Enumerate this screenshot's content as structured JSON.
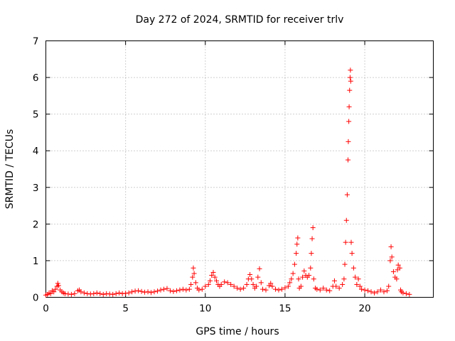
{
  "chart_data": {
    "type": "scatter",
    "title": "Day 272 of 2024, SRMTID for receiver trlv",
    "xlabel": "GPS time / hours",
    "ylabel": "SRMTID / TECUs",
    "xlim": [
      0,
      24.3
    ],
    "ylim": [
      0,
      7
    ],
    "xticks": [
      0,
      5,
      10,
      15,
      20
    ],
    "yticks": [
      0,
      1,
      2,
      3,
      4,
      5,
      6,
      7
    ],
    "grid": true,
    "legend": "none",
    "marker": "+",
    "series": [
      {
        "color": "#ff0000",
        "points": [
          [
            0.0,
            0.06
          ],
          [
            0.1,
            0.08
          ],
          [
            0.2,
            0.12
          ],
          [
            0.3,
            0.1
          ],
          [
            0.4,
            0.18
          ],
          [
            0.5,
            0.15
          ],
          [
            0.6,
            0.22
          ],
          [
            0.7,
            0.3
          ],
          [
            0.75,
            0.38
          ],
          [
            0.8,
            0.32
          ],
          [
            0.9,
            0.2
          ],
          [
            1.0,
            0.15
          ],
          [
            1.1,
            0.12
          ],
          [
            1.2,
            0.1
          ],
          [
            1.4,
            0.09
          ],
          [
            1.6,
            0.08
          ],
          [
            1.8,
            0.1
          ],
          [
            2.0,
            0.18
          ],
          [
            2.1,
            0.2
          ],
          [
            2.2,
            0.15
          ],
          [
            2.4,
            0.12
          ],
          [
            2.6,
            0.1
          ],
          [
            2.8,
            0.09
          ],
          [
            3.0,
            0.1
          ],
          [
            3.2,
            0.12
          ],
          [
            3.4,
            0.1
          ],
          [
            3.6,
            0.08
          ],
          [
            3.8,
            0.1
          ],
          [
            4.0,
            0.09
          ],
          [
            4.2,
            0.08
          ],
          [
            4.4,
            0.1
          ],
          [
            4.6,
            0.12
          ],
          [
            4.8,
            0.1
          ],
          [
            5.0,
            0.11
          ],
          [
            5.2,
            0.12
          ],
          [
            5.4,
            0.15
          ],
          [
            5.6,
            0.17
          ],
          [
            5.8,
            0.18
          ],
          [
            6.0,
            0.16
          ],
          [
            6.2,
            0.14
          ],
          [
            6.4,
            0.15
          ],
          [
            6.6,
            0.13
          ],
          [
            6.8,
            0.15
          ],
          [
            7.0,
            0.17
          ],
          [
            7.2,
            0.2
          ],
          [
            7.4,
            0.22
          ],
          [
            7.6,
            0.24
          ],
          [
            7.8,
            0.18
          ],
          [
            8.0,
            0.16
          ],
          [
            8.2,
            0.18
          ],
          [
            8.4,
            0.2
          ],
          [
            8.6,
            0.22
          ],
          [
            8.8,
            0.2
          ],
          [
            9.0,
            0.22
          ],
          [
            9.1,
            0.35
          ],
          [
            9.2,
            0.55
          ],
          [
            9.25,
            0.8
          ],
          [
            9.3,
            0.65
          ],
          [
            9.4,
            0.4
          ],
          [
            9.5,
            0.25
          ],
          [
            9.6,
            0.2
          ],
          [
            9.8,
            0.22
          ],
          [
            10.0,
            0.3
          ],
          [
            10.2,
            0.35
          ],
          [
            10.3,
            0.45
          ],
          [
            10.4,
            0.6
          ],
          [
            10.5,
            0.68
          ],
          [
            10.6,
            0.55
          ],
          [
            10.7,
            0.45
          ],
          [
            10.8,
            0.35
          ],
          [
            10.9,
            0.3
          ],
          [
            11.0,
            0.35
          ],
          [
            11.2,
            0.42
          ],
          [
            11.4,
            0.4
          ],
          [
            11.6,
            0.35
          ],
          [
            11.8,
            0.3
          ],
          [
            12.0,
            0.25
          ],
          [
            12.2,
            0.22
          ],
          [
            12.4,
            0.25
          ],
          [
            12.6,
            0.35
          ],
          [
            12.7,
            0.5
          ],
          [
            12.8,
            0.62
          ],
          [
            12.9,
            0.5
          ],
          [
            13.0,
            0.35
          ],
          [
            13.1,
            0.25
          ],
          [
            13.2,
            0.3
          ],
          [
            13.3,
            0.55
          ],
          [
            13.4,
            0.78
          ],
          [
            13.5,
            0.4
          ],
          [
            13.6,
            0.22
          ],
          [
            13.8,
            0.2
          ],
          [
            14.0,
            0.32
          ],
          [
            14.1,
            0.38
          ],
          [
            14.2,
            0.3
          ],
          [
            14.4,
            0.22
          ],
          [
            14.6,
            0.2
          ],
          [
            14.8,
            0.22
          ],
          [
            15.0,
            0.26
          ],
          [
            15.2,
            0.3
          ],
          [
            15.3,
            0.4
          ],
          [
            15.4,
            0.5
          ],
          [
            15.5,
            0.65
          ],
          [
            15.6,
            0.9
          ],
          [
            15.7,
            1.2
          ],
          [
            15.75,
            1.45
          ],
          [
            15.8,
            1.62
          ],
          [
            15.85,
            0.5
          ],
          [
            15.9,
            0.25
          ],
          [
            16.0,
            0.3
          ],
          [
            16.1,
            0.55
          ],
          [
            16.2,
            0.72
          ],
          [
            16.3,
            0.6
          ],
          [
            16.4,
            0.55
          ],
          [
            16.5,
            0.6
          ],
          [
            16.6,
            0.8
          ],
          [
            16.65,
            1.2
          ],
          [
            16.7,
            1.6
          ],
          [
            16.75,
            1.9
          ],
          [
            16.8,
            0.5
          ],
          [
            16.9,
            0.25
          ],
          [
            17.0,
            0.22
          ],
          [
            17.2,
            0.2
          ],
          [
            17.4,
            0.25
          ],
          [
            17.6,
            0.2
          ],
          [
            17.8,
            0.18
          ],
          [
            18.0,
            0.3
          ],
          [
            18.1,
            0.45
          ],
          [
            18.2,
            0.3
          ],
          [
            18.4,
            0.25
          ],
          [
            18.6,
            0.35
          ],
          [
            18.7,
            0.5
          ],
          [
            18.75,
            0.9
          ],
          [
            18.8,
            1.5
          ],
          [
            18.85,
            2.1
          ],
          [
            18.9,
            2.8
          ],
          [
            18.95,
            3.75
          ],
          [
            18.97,
            4.25
          ],
          [
            19.0,
            4.8
          ],
          [
            19.02,
            5.2
          ],
          [
            19.05,
            5.65
          ],
          [
            19.08,
            6.0
          ],
          [
            19.1,
            6.2
          ],
          [
            19.12,
            5.9
          ],
          [
            19.15,
            1.5
          ],
          [
            19.2,
            1.2
          ],
          [
            19.3,
            0.8
          ],
          [
            19.4,
            0.55
          ],
          [
            19.5,
            0.35
          ],
          [
            19.6,
            0.5
          ],
          [
            19.7,
            0.3
          ],
          [
            19.8,
            0.22
          ],
          [
            20.0,
            0.2
          ],
          [
            20.2,
            0.18
          ],
          [
            20.4,
            0.15
          ],
          [
            20.6,
            0.12
          ],
          [
            20.8,
            0.15
          ],
          [
            21.0,
            0.2
          ],
          [
            21.2,
            0.15
          ],
          [
            21.4,
            0.18
          ],
          [
            21.5,
            0.3
          ],
          [
            21.6,
            1.0
          ],
          [
            21.65,
            1.38
          ],
          [
            21.7,
            1.1
          ],
          [
            21.8,
            0.7
          ],
          [
            21.9,
            0.55
          ],
          [
            22.0,
            0.5
          ],
          [
            22.05,
            0.75
          ],
          [
            22.1,
            0.88
          ],
          [
            22.2,
            0.8
          ],
          [
            22.25,
            0.2
          ],
          [
            22.3,
            0.15
          ],
          [
            22.4,
            0.12
          ],
          [
            22.6,
            0.1
          ],
          [
            22.8,
            0.08
          ]
        ]
      }
    ]
  }
}
